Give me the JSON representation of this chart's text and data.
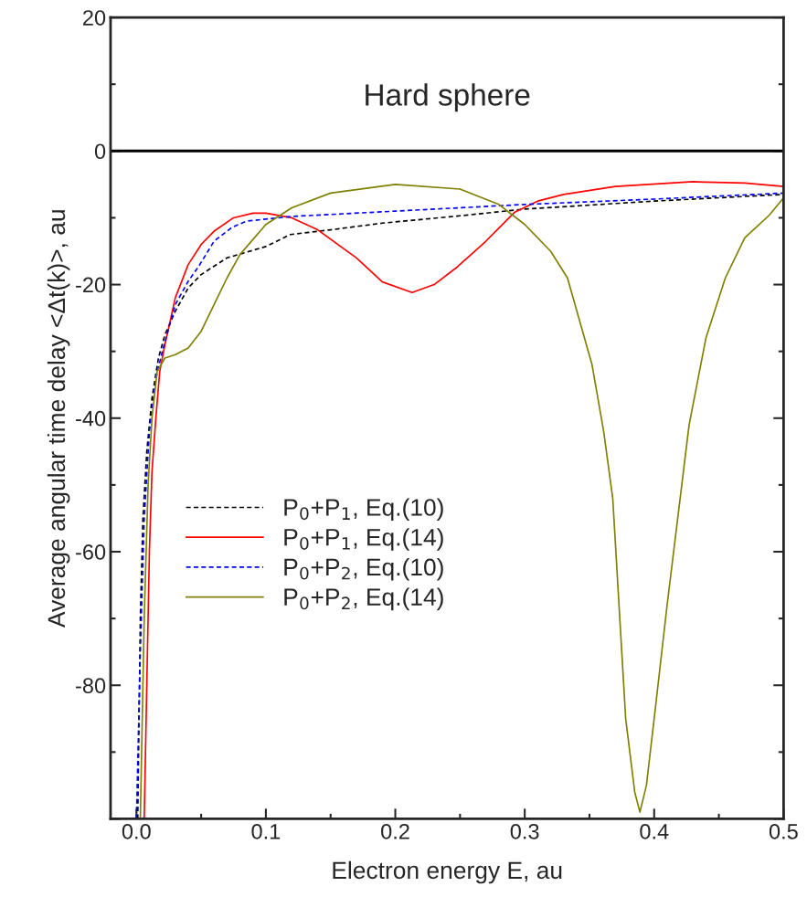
{
  "chart_data": {
    "type": "line",
    "annotations": [
      "Hard sphere"
    ],
    "xlabel": "Electron energy E, au",
    "ylabel": "Average angular time delay <Δt(k)>, au",
    "xlim": [
      -0.02,
      0.5
    ],
    "xticks": [
      {
        "value": 0,
        "label": "0.0"
      },
      0.1,
      0.2,
      0.3,
      0.4,
      0.5
    ],
    "ylim": [
      -100,
      20
    ],
    "yticks": [
      {
        "value": -100,
        "label": null
      },
      -80,
      -60,
      -40,
      -20,
      0,
      20
    ],
    "grid": false,
    "legend": "left",
    "ref_lines": [
      {
        "axis": "y",
        "value": 0,
        "color": "#000000",
        "line_style": "solid"
      }
    ],
    "series": [
      {
        "name": "P$_{0}$+P$_{1}$, Eq.(10)",
        "color": "#000000",
        "line_style": "dashed",
        "x": [
          0.001,
          0.003,
          0.005,
          0.008,
          0.012,
          0.017,
          0.022,
          0.03,
          0.04,
          0.05,
          0.07,
          0.1,
          0.119,
          0.15,
          0.19,
          0.25,
          0.3,
          0.4,
          0.5
        ],
        "values": [
          -100,
          -70,
          -55,
          -45,
          -37,
          -31,
          -27.5,
          -24,
          -20.5,
          -18.5,
          -16,
          -14.3,
          -12.5,
          -11.8,
          -10.8,
          -9.7,
          -8.7,
          -7.5,
          -6.5
        ]
      },
      {
        "name": "P$_{0}$+P$_{1}$, Eq.(14)",
        "color": "#ff0000",
        "line_style": "solid",
        "x": [
          0.006,
          0.008,
          0.01,
          0.012,
          0.015,
          0.018,
          0.022,
          0.03,
          0.04,
          0.05,
          0.06,
          0.075,
          0.09,
          0.1,
          0.12,
          0.14,
          0.17,
          0.19,
          0.213,
          0.23,
          0.247,
          0.27,
          0.292,
          0.31,
          0.33,
          0.37,
          0.43,
          0.47,
          0.5
        ],
        "values": [
          -100,
          -80,
          -60,
          -48,
          -40,
          -33,
          -29,
          -22,
          -17,
          -14,
          -12,
          -10,
          -9.3,
          -9.3,
          -10,
          -11.8,
          -16,
          -19.6,
          -21.2,
          -20,
          -17.5,
          -13.5,
          -9.2,
          -7.5,
          -6.5,
          -5.3,
          -4.6,
          -4.8,
          -5.3
        ]
      },
      {
        "name": "P$_{0}$+P$_{2}$, Eq.(10)",
        "color": "#0000ff",
        "line_style": "dashed",
        "x": [
          0.0,
          0.003,
          0.006,
          0.01,
          0.015,
          0.02,
          0.03,
          0.04,
          0.048,
          0.06,
          0.074,
          0.085,
          0.12,
          0.2,
          0.3,
          0.4,
          0.5
        ],
        "values": [
          -100,
          -75,
          -55,
          -42,
          -34,
          -30,
          -23,
          -19.5,
          -17.3,
          -13.5,
          -11.4,
          -10.5,
          -9.8,
          -9,
          -8,
          -7.2,
          -6.3
        ]
      },
      {
        "name": "P$_{0}$+P$_{2}$, Eq.(14)",
        "color": "#808000",
        "line_style": "solid",
        "x": [
          0.003,
          0.006,
          0.009,
          0.012,
          0.016,
          0.022,
          0.03,
          0.04,
          0.05,
          0.06,
          0.07,
          0.08,
          0.1,
          0.12,
          0.15,
          0.2,
          0.25,
          0.28,
          0.3,
          0.32,
          0.333,
          0.352,
          0.361,
          0.368,
          0.378,
          0.385,
          0.389,
          0.394,
          0.4,
          0.41,
          0.427,
          0.44,
          0.455,
          0.47,
          0.489,
          0.5
        ],
        "values": [
          -100,
          -70,
          -50,
          -40,
          -33,
          -31,
          -30.5,
          -29.5,
          -27,
          -23,
          -19,
          -15.5,
          -11,
          -8.5,
          -6.3,
          -5,
          -5.7,
          -8,
          -11,
          -15,
          -19,
          -32,
          -42,
          -52,
          -85,
          -96,
          -99,
          -95,
          -85,
          -68,
          -41,
          -28,
          -19,
          -13,
          -9.6,
          -7
        ]
      }
    ]
  }
}
